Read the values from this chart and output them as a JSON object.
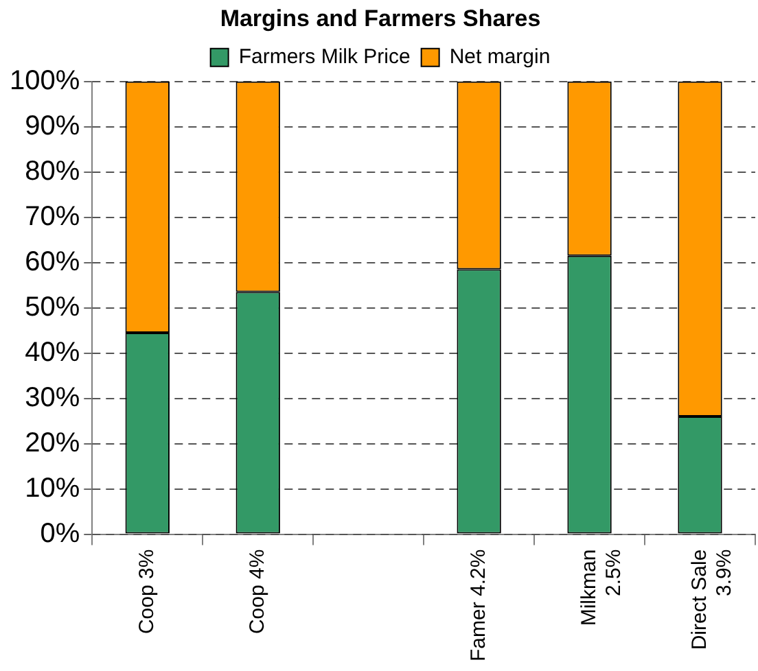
{
  "chart_data": {
    "type": "bar",
    "title": "Margins and Farmers Shares",
    "categories": [
      "Coop 3%",
      "Coop 4%",
      null,
      "Famer 4.2%",
      "Milkman\n2.5%",
      "Direct Sale\n3.9%"
    ],
    "series": [
      {
        "name": "Farmers Milk Price",
        "color": "#339966",
        "values": [
          44.5,
          53.5,
          null,
          58.5,
          61.5,
          26
        ]
      },
      {
        "name": "Net margin",
        "color": "#ff9900",
        "values": [
          55.5,
          46.5,
          null,
          41.5,
          38.5,
          74
        ]
      }
    ],
    "stacked": true,
    "ylim": [
      0,
      100
    ],
    "yticks": [
      {
        "value": 0,
        "label": "0%"
      },
      {
        "value": 10,
        "label": "10%"
      },
      {
        "value": 20,
        "label": "20%"
      },
      {
        "value": 30,
        "label": "30%"
      },
      {
        "value": 40,
        "label": "40%"
      },
      {
        "value": 50,
        "label": "50%"
      },
      {
        "value": 60,
        "label": "60%"
      },
      {
        "value": 70,
        "label": "70%"
      },
      {
        "value": 80,
        "label": "80%"
      },
      {
        "value": 90,
        "label": "90%"
      },
      {
        "value": 100,
        "label": "100%"
      }
    ],
    "grid": "y",
    "legend": "top"
  }
}
